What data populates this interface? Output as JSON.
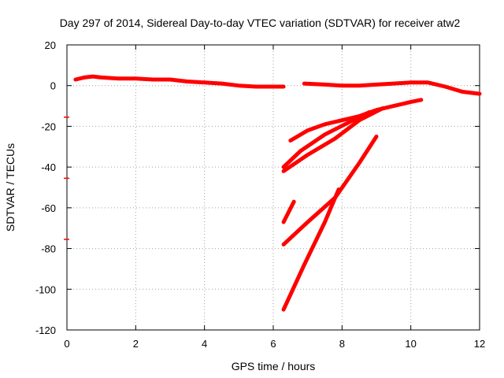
{
  "chart_data": {
    "type": "scatter",
    "title": "Day 297 of 2014, Sidereal Day-to-day VTEC variation (SDTVAR) for receiver atw2",
    "xlabel": "GPS time / hours",
    "ylabel": "SDTVAR / TECUs",
    "xlim": [
      0,
      12
    ],
    "ylim": [
      -120,
      20
    ],
    "xticks": [
      0,
      2,
      4,
      6,
      8,
      10,
      12
    ],
    "yticks": [
      -120,
      -100,
      -80,
      -60,
      -40,
      -20,
      0,
      20
    ],
    "grid": true,
    "color": "#ff0000",
    "series": [
      {
        "values": [
          [
            0.25,
            3
          ],
          [
            0.5,
            4
          ],
          [
            0.75,
            4.5
          ],
          [
            1,
            4
          ],
          [
            1.5,
            3.5
          ],
          [
            2,
            3.5
          ],
          [
            2.5,
            3
          ],
          [
            3,
            3
          ],
          [
            3.5,
            2
          ],
          [
            4,
            1.5
          ],
          [
            4.5,
            1
          ],
          [
            5,
            0
          ],
          [
            5.5,
            -0.5
          ],
          [
            6,
            -0.5
          ],
          [
            6.3,
            -0.5
          ]
        ]
      },
      {
        "values": [
          [
            6.9,
            1
          ],
          [
            7.5,
            0.5
          ],
          [
            8,
            0
          ],
          [
            8.5,
            0
          ],
          [
            9,
            0.5
          ],
          [
            9.5,
            1
          ],
          [
            10,
            1.5
          ],
          [
            10.5,
            1.5
          ],
          [
            11,
            -0.5
          ],
          [
            11.5,
            -3
          ],
          [
            12,
            -4
          ]
        ]
      },
      {
        "values": [
          [
            6.5,
            -27
          ],
          [
            7,
            -22
          ],
          [
            7.5,
            -19
          ],
          [
            8,
            -17
          ],
          [
            8.5,
            -15
          ],
          [
            9,
            -12
          ],
          [
            9.5,
            -10
          ],
          [
            10,
            -8
          ],
          [
            10.3,
            -7
          ]
        ]
      },
      {
        "values": [
          [
            6.3,
            -40
          ],
          [
            6.8,
            -32
          ],
          [
            7.5,
            -24
          ],
          [
            8.2,
            -18
          ],
          [
            8.8,
            -13
          ]
        ]
      },
      {
        "values": [
          [
            6.3,
            -42
          ],
          [
            7,
            -34
          ],
          [
            7.8,
            -26
          ],
          [
            8.5,
            -17
          ],
          [
            9.2,
            -11
          ]
        ]
      },
      {
        "values": [
          [
            6.3,
            -67
          ],
          [
            6.6,
            -57
          ]
        ]
      },
      {
        "values": [
          [
            6.3,
            -78
          ],
          [
            7,
            -67
          ],
          [
            7.8,
            -55
          ],
          [
            8.5,
            -38
          ],
          [
            9,
            -25
          ]
        ]
      },
      {
        "values": [
          [
            6.3,
            -110
          ],
          [
            6.9,
            -88
          ],
          [
            7.5,
            -67
          ],
          [
            7.9,
            -51
          ]
        ]
      },
      {
        "values": [
          [
            0,
            -15.5
          ]
        ]
      },
      {
        "values": [
          [
            0,
            -45.5
          ]
        ]
      },
      {
        "values": [
          [
            0,
            -75.5
          ]
        ]
      }
    ]
  }
}
